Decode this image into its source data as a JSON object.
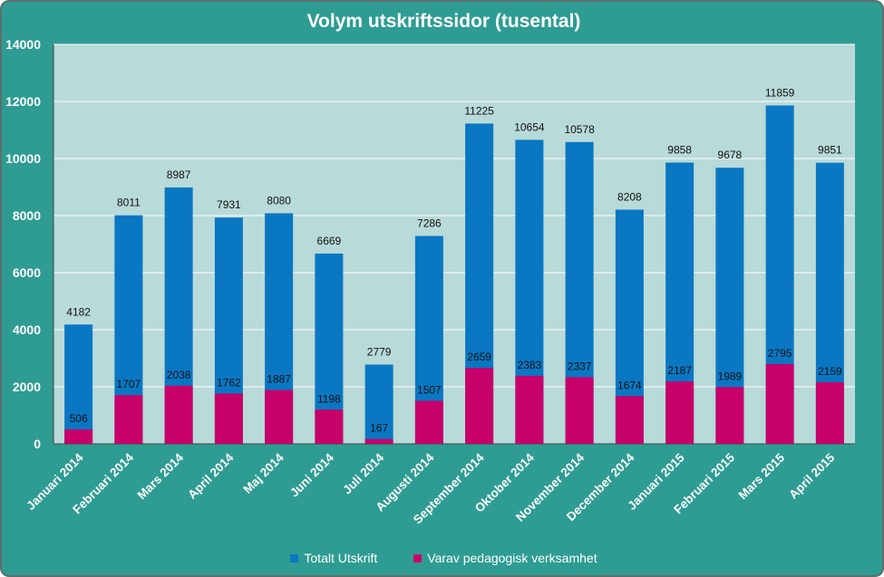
{
  "chart_data": {
    "type": "bar",
    "title": "Volym utskriftssidor (tusental)",
    "categories": [
      "Januari 2014",
      "Februari 2014",
      "Mars 2014",
      "April 2014",
      "Maj 2014",
      "Juni 2014",
      "Juli 2014",
      "Augusti 2014",
      "September 2014",
      "Oktober 2014",
      "November 2014",
      "December 2014",
      "Januari 2015",
      "Februari 2015",
      "Mars 2015",
      "April 2015"
    ],
    "series": [
      {
        "name": "Totalt Utskrift",
        "color": "#0a77c3",
        "values": [
          4182,
          8011,
          8987,
          7931,
          8080,
          6669,
          2779,
          7286,
          11225,
          10654,
          10578,
          8208,
          9858,
          9678,
          11859,
          9851
        ]
      },
      {
        "name": "Varav pedagogisk verksamhet",
        "color": "#c8006a",
        "values": [
          506,
          1707,
          2038,
          1762,
          1887,
          1198,
          167,
          1507,
          2659,
          2383,
          2337,
          1674,
          2187,
          1989,
          2795,
          2159
        ]
      }
    ],
    "yticks": [
      0,
      2000,
      4000,
      6000,
      8000,
      10000,
      12000,
      14000
    ],
    "ylim": [
      0,
      14000
    ],
    "xlabel": "",
    "ylabel": "",
    "grid": true,
    "legend_position": "bottom",
    "plot_background": "#b8dad8"
  }
}
